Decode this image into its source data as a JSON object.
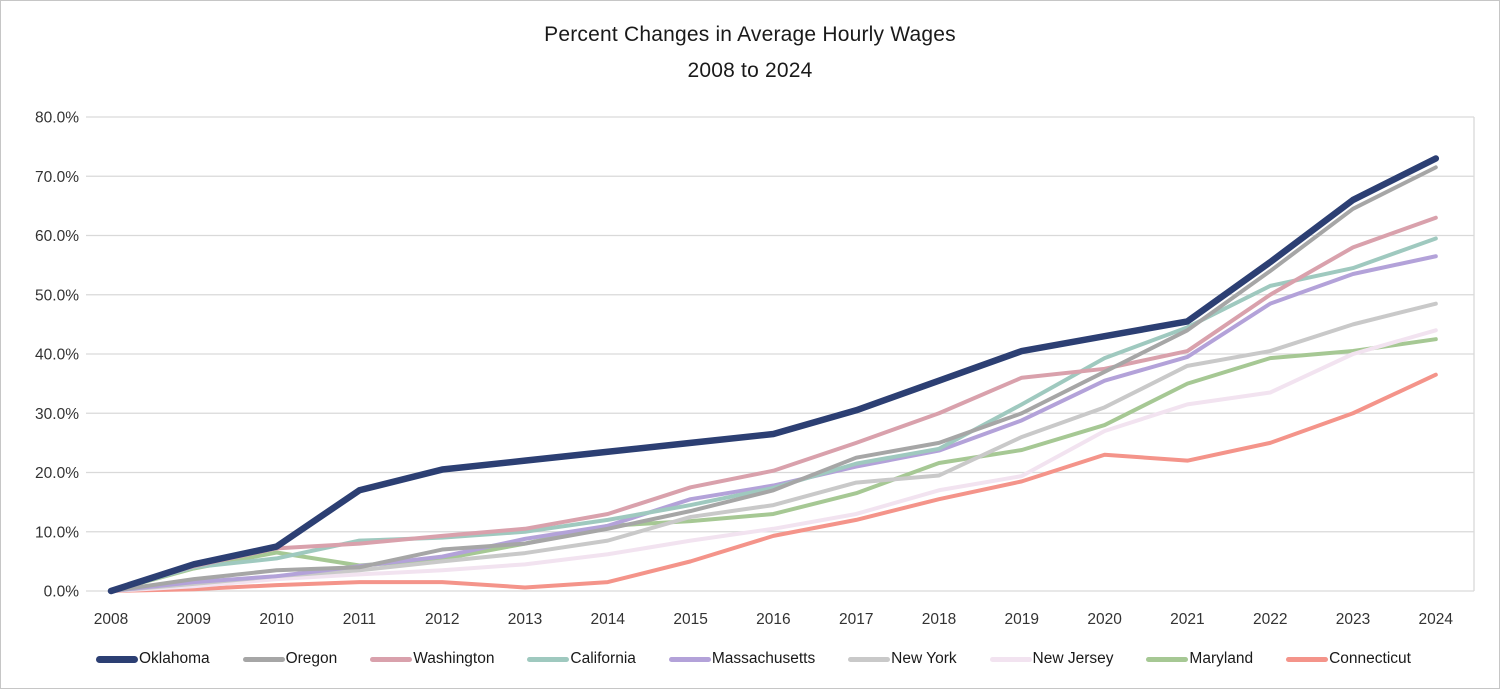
{
  "title": {
    "line1": "Percent Changes in Average Hourly Wages",
    "line2": "2008 to 2024"
  },
  "chart_data": {
    "type": "line",
    "x": [
      2008,
      2009,
      2010,
      2011,
      2012,
      2013,
      2014,
      2015,
      2016,
      2017,
      2018,
      2019,
      2020,
      2021,
      2022,
      2023,
      2024
    ],
    "xtick_labels": [
      "2008",
      "2009",
      "2010",
      "2011",
      "2012",
      "2013",
      "2014",
      "2015",
      "2016",
      "2017",
      "2018",
      "2019",
      "2020",
      "2021",
      "2022",
      "2023",
      "2024"
    ],
    "ytick_labels": [
      "0.0%",
      "10.0%",
      "20.0%",
      "30.0%",
      "40.0%",
      "50.0%",
      "60.0%",
      "70.0%",
      "80.0%"
    ],
    "ylim": [
      0,
      80
    ],
    "ytick_step": 10,
    "grid": "horizontal",
    "gridline_color": "#d9d9d9",
    "legend_position": "bottom",
    "series": [
      {
        "name": "Oklahoma",
        "color": "#2c3f73",
        "width": 6.5,
        "values": [
          0,
          4.5,
          7.5,
          17,
          20.5,
          22,
          23.5,
          25,
          26.5,
          30.5,
          35.5,
          40.5,
          43,
          45.5,
          55.5,
          66,
          73
        ]
      },
      {
        "name": "Oregon",
        "color": "#a6a6a6",
        "width": 4,
        "values": [
          0,
          2,
          3.5,
          4,
          7,
          8,
          10.5,
          13.5,
          17,
          22.5,
          25,
          30,
          37,
          44,
          54,
          64.5,
          71.5
        ]
      },
      {
        "name": "Washington",
        "color": "#d9a1ac",
        "width": 4,
        "values": [
          0,
          4.2,
          7.2,
          8,
          9.3,
          10.5,
          13,
          17.5,
          20.3,
          25,
          30,
          36,
          37.5,
          40.5,
          50,
          58,
          63
        ]
      },
      {
        "name": "California",
        "color": "#9fc9bf",
        "width": 4,
        "values": [
          0,
          4,
          5.5,
          8.5,
          9,
          10,
          12,
          14.5,
          17.4,
          21.5,
          24,
          31.5,
          39.3,
          44.5,
          51.5,
          54.5,
          59.5
        ]
      },
      {
        "name": "Massachusetts",
        "color": "#b3a2d9",
        "width": 4,
        "values": [
          0,
          1.5,
          2.5,
          4.2,
          5.8,
          8.8,
          11,
          15.5,
          17.8,
          21,
          23.7,
          28.8,
          35.5,
          39.5,
          48.5,
          53.5,
          56.5
        ]
      },
      {
        "name": "New York",
        "color": "#c9c9c9",
        "width": 4,
        "values": [
          0,
          1.2,
          2.5,
          3.5,
          5,
          6.4,
          8.5,
          12.5,
          14.5,
          18.3,
          19.5,
          26,
          31,
          38,
          40.5,
          45,
          48.5
        ]
      },
      {
        "name": "New Jersey",
        "color": "#f2e3f0",
        "width": 4,
        "values": [
          0,
          0.8,
          2,
          2.8,
          3.5,
          4.5,
          6.2,
          8.5,
          10.5,
          13,
          17,
          19.4,
          27,
          31.5,
          33.5,
          40,
          44
        ]
      },
      {
        "name": "Maryland",
        "color": "#a6c894",
        "width": 4,
        "values": [
          0,
          3.8,
          6.5,
          4.3,
          5.4,
          8,
          11,
          11.8,
          13,
          16.5,
          21.6,
          23.8,
          28,
          35,
          39.3,
          40.5,
          42.5
        ]
      },
      {
        "name": "Connecticut",
        "color": "#f4948a",
        "width": 4,
        "values": [
          0,
          0.3,
          1,
          1.5,
          1.5,
          0.6,
          1.5,
          5,
          9.3,
          12,
          15.5,
          18.5,
          23,
          22,
          25,
          30,
          36.5
        ]
      }
    ]
  }
}
